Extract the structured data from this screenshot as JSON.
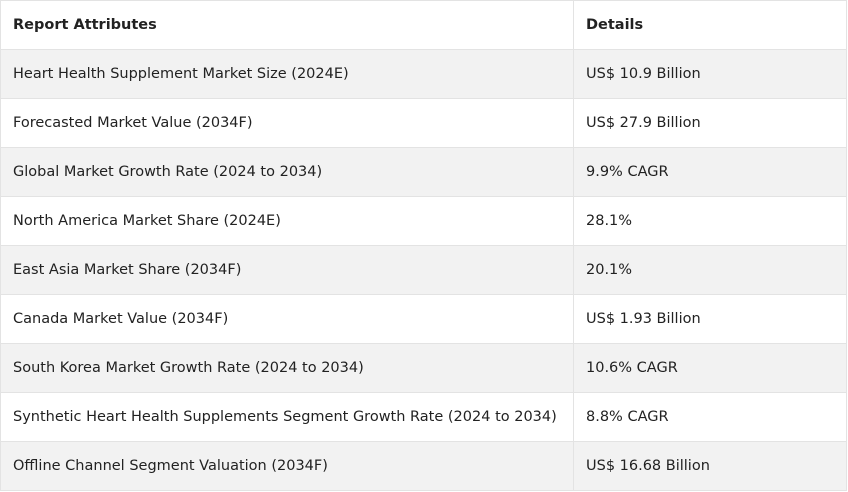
{
  "table": {
    "header": [
      "Report Attributes",
      "Details"
    ],
    "rows": [
      [
        "Heart Health Supplement Market Size (2024E)",
        "US$ 10.9 Billion"
      ],
      [
        "Forecasted Market Value (2034F)",
        "US$ 27.9 Billion"
      ],
      [
        "Global Market Growth Rate (2024 to 2034)",
        "9.9% CAGR"
      ],
      [
        "North America Market Share (2024E)",
        "28.1%"
      ],
      [
        "East Asia Market Share (2034F)",
        "20.1%"
      ],
      [
        "Canada Market Value (2034F)",
        "US$ 1.93 Billion"
      ],
      [
        "South Korea Market Growth Rate (2024 to 2034)",
        "10.6% CAGR"
      ],
      [
        "Synthetic Heart Health Supplements Segment Growth Rate (2024 to 2034)",
        "8.8% CAGR"
      ],
      [
        "Offline Channel Segment Valuation (2034F)",
        "US$ 16.68 Billion"
      ]
    ]
  }
}
